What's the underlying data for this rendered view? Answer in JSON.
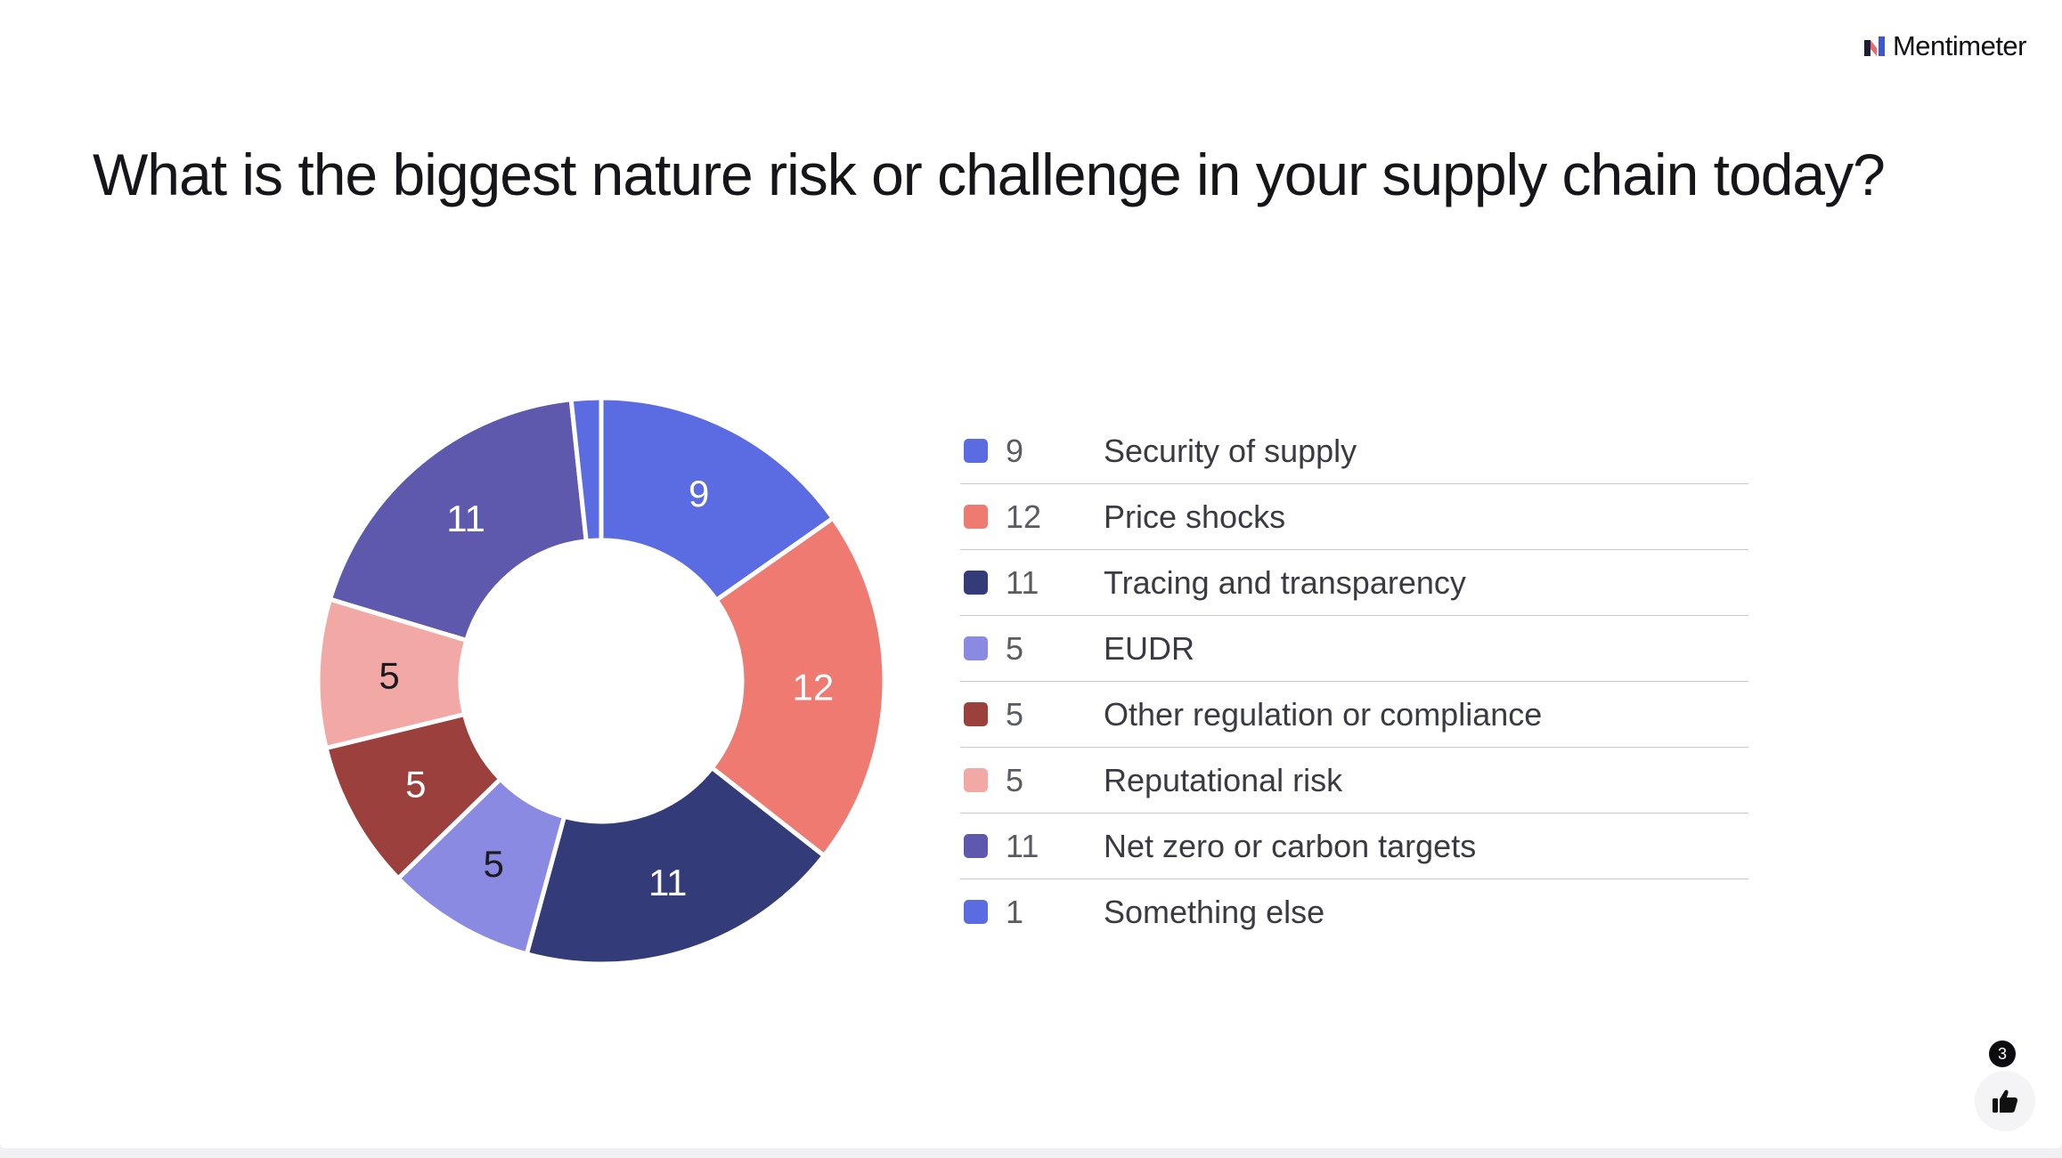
{
  "brand": {
    "name": "Mentimeter",
    "icon": "mentimeter-logo-icon"
  },
  "title": "What is the biggest nature risk or challenge in your supply chain today?",
  "reactions": {
    "count": "3",
    "icon": "thumbs-up-icon"
  },
  "chart_data": {
    "type": "pie",
    "variant": "donut",
    "title": "",
    "legend_position": "right",
    "series": [
      {
        "label": "Security of supply",
        "value": 9,
        "color": "#5B6BE1"
      },
      {
        "label": "Price shocks",
        "value": 12,
        "color": "#EE7A72"
      },
      {
        "label": "Tracing and transparency",
        "value": 11,
        "color": "#333B78"
      },
      {
        "label": "EUDR",
        "value": 5,
        "color": "#8B8AE3"
      },
      {
        "label": "Other regulation or compliance",
        "value": 5,
        "color": "#9B403C"
      },
      {
        "label": "Reputational risk",
        "value": 5,
        "color": "#F2A9A5"
      },
      {
        "label": "Net zero or carbon targets",
        "value": 11,
        "color": "#5F59AD"
      },
      {
        "label": "Something else",
        "value": 1,
        "color": "#5B6BE1"
      }
    ]
  }
}
